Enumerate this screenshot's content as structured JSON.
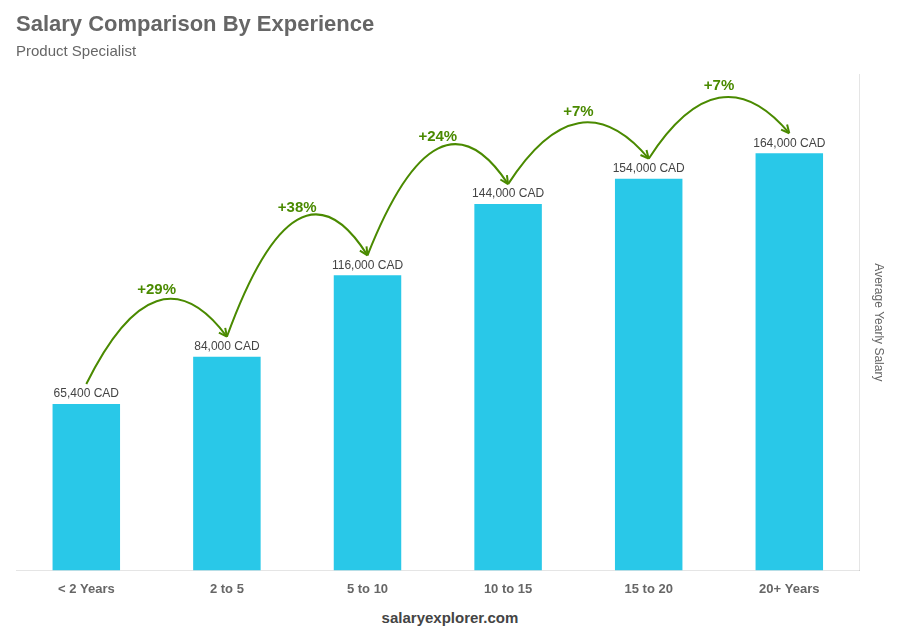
{
  "chart_data": {
    "type": "bar",
    "title": "Salary Comparison By Experience",
    "subtitle": "Product Specialist",
    "categories": [
      "< 2 Years",
      "2 to 5",
      "5 to 10",
      "10 to 15",
      "15 to 20",
      "20+ Years"
    ],
    "values": [
      65400,
      84000,
      116000,
      144000,
      154000,
      164000
    ],
    "value_labels": [
      "65,400 CAD",
      "84,000 CAD",
      "116,000 CAD",
      "144,000 CAD",
      "154,000 CAD",
      "164,000 CAD"
    ],
    "data_labels": true,
    "annotations": [
      "+29%",
      "+38%",
      "+24%",
      "+7%",
      "+7%"
    ],
    "color": "#29c8e8",
    "ylabel": "Average Yearly Salary",
    "footer": "salaryexplorer.com",
    "ylim": [
      0,
      195000
    ],
    "grid": false,
    "tick_labels": "x"
  }
}
